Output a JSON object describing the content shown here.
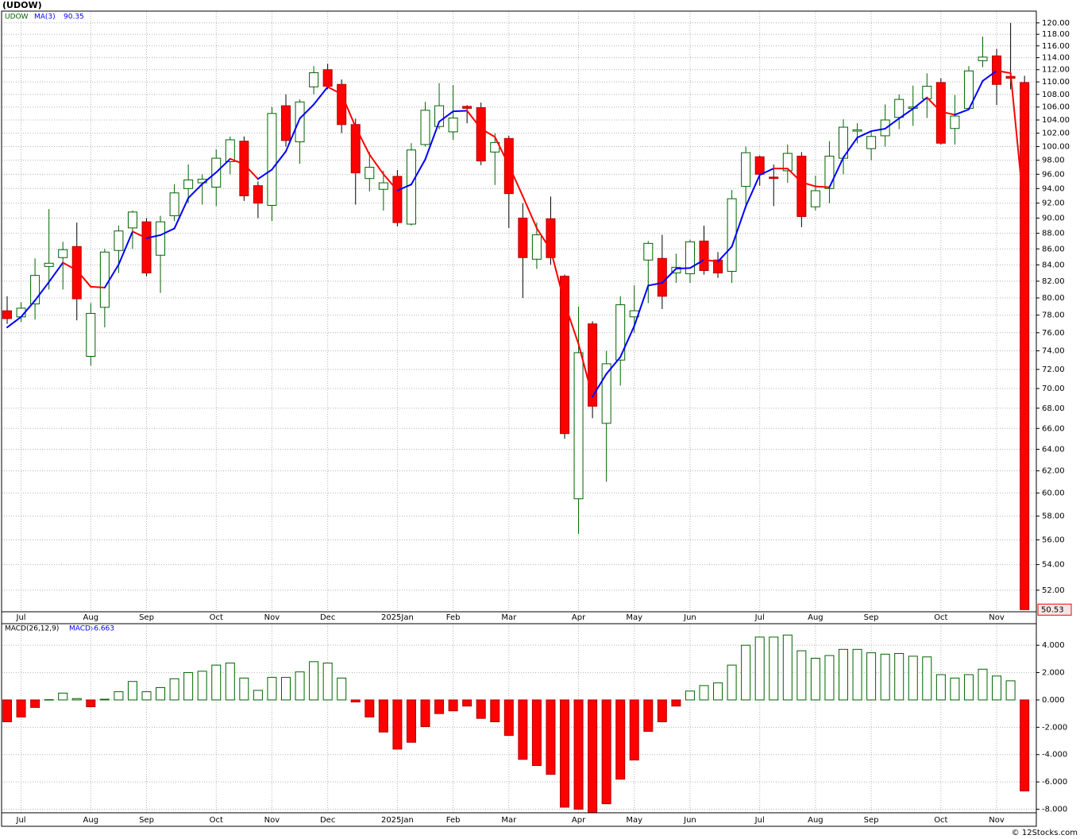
{
  "title": "(UDOW)",
  "credit": "© 12Stocks.com",
  "chart_data": [
    {
      "type": "candlestick",
      "name": "UDOW",
      "log_scale": true,
      "grid": true,
      "categories": [
        null,
        "Jul",
        null,
        null,
        null,
        null,
        "Aug",
        null,
        null,
        null,
        "Sep",
        null,
        null,
        null,
        null,
        "Oct",
        null,
        null,
        null,
        "Nov",
        null,
        null,
        null,
        "Dec",
        null,
        null,
        null,
        null,
        "2025Jan",
        null,
        null,
        null,
        "Feb",
        null,
        null,
        null,
        "Mar",
        null,
        null,
        null,
        null,
        "Apr",
        null,
        null,
        null,
        "May",
        null,
        null,
        null,
        "Jun",
        null,
        null,
        null,
        null,
        "Jul",
        null,
        null,
        null,
        "Aug",
        null,
        null,
        null,
        "Sep",
        null,
        null,
        null,
        null,
        "Oct",
        null,
        null,
        null,
        "Nov",
        null,
        null
      ],
      "open": [
        78.5,
        77.8,
        79.3,
        83.8,
        84.9,
        86.3,
        73.4,
        78.9,
        85.8,
        88.7,
        89.5,
        85.2,
        90.3,
        94.0,
        94.8,
        94.2,
        97.8,
        100.8,
        94.4,
        91.7,
        106.2,
        100.7,
        109.2,
        112.0,
        109.6,
        103.3,
        95.4,
        93.9,
        95.7,
        89.2,
        100.3,
        103.0,
        102.2,
        106.1,
        105.9,
        99.2,
        101.2,
        90.0,
        84.7,
        89.9,
        82.6,
        59.5,
        77.0,
        66.5,
        73.0,
        77.8,
        84.6,
        84.8,
        83.0,
        82.9,
        87.0,
        84.6,
        83.2,
        94.3,
        98.5,
        95.6,
        96.5,
        98.6,
        91.5,
        94.0,
        98.3,
        102.3,
        99.7,
        101.6,
        104.4,
        105.8,
        107.3,
        109.9,
        102.7,
        105.8,
        113.5,
        114.3,
        110.9,
        109.9
      ],
      "high": [
        80.2,
        79.5,
        84.8,
        91.2,
        86.9,
        89.4,
        79.4,
        86.0,
        89.0,
        91.0,
        90.0,
        90.3,
        94.6,
        97.4,
        96.0,
        99.6,
        101.5,
        101.5,
        95.0,
        106.0,
        108.0,
        107.2,
        112.6,
        113.0,
        110.4,
        104.2,
        99.2,
        96.5,
        96.6,
        100.5,
        106.8,
        109.8,
        109.5,
        106.3,
        106.7,
        102.0,
        101.6,
        92.0,
        89.4,
        92.9,
        82.8,
        79.0,
        77.3,
        74.0,
        80.2,
        81.5,
        87.0,
        87.8,
        85.4,
        87.2,
        89.0,
        85.6,
        93.8,
        100.0,
        98.7,
        97.4,
        100.3,
        99.2,
        95.8,
        100.8,
        104.1,
        103.5,
        102.3,
        106.4,
        108.0,
        109.4,
        111.4,
        110.6,
        107.9,
        112.6,
        117.6,
        115.5,
        120.0,
        111.0
      ],
      "low": [
        77.0,
        77.2,
        77.5,
        81.0,
        81.0,
        77.4,
        72.4,
        76.6,
        83.0,
        86.0,
        82.6,
        80.6,
        89.6,
        92.0,
        91.8,
        91.6,
        96.0,
        92.3,
        90.0,
        89.6,
        100.0,
        97.5,
        108.0,
        108.8,
        102.0,
        91.8,
        93.6,
        91.0,
        88.9,
        89.0,
        100.0,
        102.6,
        101.0,
        103.5,
        97.3,
        94.5,
        88.7,
        80.0,
        83.5,
        84.0,
        65.0,
        56.5,
        67.0,
        61.0,
        70.3,
        76.0,
        79.4,
        78.7,
        81.8,
        81.8,
        82.8,
        82.4,
        81.8,
        91.8,
        94.4,
        91.6,
        94.8,
        88.8,
        91.0,
        92.0,
        96.0,
        100.5,
        98.0,
        100.0,
        102.6,
        103.1,
        104.3,
        100.3,
        100.3,
        105.6,
        112.4,
        106.3,
        108.8,
        50.53
      ],
      "close": [
        77.6,
        78.8,
        82.7,
        84.2,
        85.9,
        79.9,
        78.2,
        85.6,
        88.3,
        90.8,
        83.0,
        89.5,
        93.4,
        95.2,
        95.3,
        98.3,
        101.0,
        93.0,
        92.0,
        105.0,
        100.9,
        106.8,
        111.5,
        109.3,
        103.3,
        96.2,
        97.0,
        94.8,
        89.4,
        99.5,
        105.5,
        106.2,
        104.3,
        105.8,
        97.9,
        100.6,
        93.3,
        84.9,
        87.8,
        84.9,
        65.5,
        73.8,
        68.2,
        72.6,
        79.2,
        78.5,
        86.7,
        80.2,
        83.7,
        86.9,
        83.3,
        83.0,
        92.6,
        99.1,
        96.0,
        95.4,
        99.0,
        90.2,
        93.7,
        98.6,
        102.9,
        102.5,
        101.5,
        104.0,
        107.2,
        106.0,
        109.3,
        100.5,
        104.6,
        111.8,
        114.1,
        109.6,
        110.6,
        50.53
      ],
      "up_color": "#006400",
      "down_color": "#ff0000",
      "ma": {
        "name": "MA(3)",
        "up_color": "#0000ff",
        "down_color": "#ff0000",
        "values": [
          76.6,
          77.8,
          79.7,
          81.9,
          84.27,
          83.33,
          81.33,
          81.23,
          84.03,
          88.23,
          87.37,
          87.77,
          88.63,
          92.7,
          94.63,
          96.27,
          98.2,
          97.43,
          95.33,
          96.67,
          99.3,
          104.23,
          106.4,
          109.2,
          108.03,
          102.93,
          98.83,
          96,
          93.73,
          94.57,
          98.13,
          103.73,
          105.33,
          105.43,
          102.67,
          101.43,
          97.27,
          92.93,
          88.67,
          85.87,
          79.4,
          74.73,
          69.17,
          71.53,
          73.33,
          76.77,
          81.47,
          81.8,
          83.53,
          83.6,
          84.63,
          84.4,
          86.3,
          91.57,
          95.9,
          96.83,
          96.8,
          94.87,
          94.3,
          94.17,
          98.4,
          101.33,
          102.3,
          102.67,
          104.23,
          105.73,
          107.5,
          105.27,
          104.8,
          105.63,
          110.17,
          111.83,
          111.43,
          90.35
        ]
      },
      "ylim": [
        50.37,
        122.1
      ],
      "yticks": [
        {
          "value": 52,
          "label": "52.00"
        },
        {
          "value": 54,
          "label": "54.00"
        },
        {
          "value": 56,
          "label": "56.00"
        },
        {
          "value": 58,
          "label": "58.00"
        },
        {
          "value": 60,
          "label": "60.00"
        },
        {
          "value": 62,
          "label": "62.00"
        },
        {
          "value": 64,
          "label": "64.00"
        },
        {
          "value": 66,
          "label": "66.00"
        },
        {
          "value": 68,
          "label": "68.00"
        },
        {
          "value": 70,
          "label": "70.00"
        },
        {
          "value": 72,
          "label": "72.00"
        },
        {
          "value": 74,
          "label": "74.00"
        },
        {
          "value": 76,
          "label": "76.00"
        },
        {
          "value": 78,
          "label": "78.00"
        },
        {
          "value": 80,
          "label": "80.00"
        },
        {
          "value": 82,
          "label": "82.00"
        },
        {
          "value": 84,
          "label": "84.00"
        },
        {
          "value": 86,
          "label": "86.00"
        },
        {
          "value": 88,
          "label": "88.00"
        },
        {
          "value": 90,
          "label": "90.00"
        },
        {
          "value": 92,
          "label": "92.00"
        },
        {
          "value": 94,
          "label": "94.00"
        },
        {
          "value": 96,
          "label": "96.00"
        },
        {
          "value": 98,
          "label": "98.00"
        },
        {
          "value": 100,
          "label": "100.00"
        },
        {
          "value": 102,
          "label": "102.00"
        },
        {
          "value": 104,
          "label": "104.00"
        },
        {
          "value": 106,
          "label": "106.00"
        },
        {
          "value": 108,
          "label": "108.00"
        },
        {
          "value": 110,
          "label": "110.00"
        },
        {
          "value": 112,
          "label": "112.00"
        },
        {
          "value": 114,
          "label": "114.00"
        },
        {
          "value": 116,
          "label": "116.00"
        },
        {
          "value": 118,
          "label": "118.00"
        },
        {
          "value": 120,
          "label": "120.00"
        }
      ]
    },
    {
      "type": "macd",
      "name": "MACD(26,12,9)",
      "value_name": "MACD:",
      "grid": true,
      "categories": [
        null,
        "Jul",
        null,
        null,
        null,
        null,
        "Aug",
        null,
        null,
        null,
        "Sep",
        null,
        null,
        null,
        null,
        "Oct",
        null,
        null,
        null,
        "Nov",
        null,
        null,
        null,
        "Dec",
        null,
        null,
        null,
        null,
        "2025Jan",
        null,
        null,
        null,
        "Feb",
        null,
        null,
        null,
        "Mar",
        null,
        null,
        null,
        null,
        "Apr",
        null,
        null,
        null,
        "May",
        null,
        null,
        null,
        "Jun",
        null,
        null,
        null,
        null,
        "Jul",
        null,
        null,
        null,
        "Aug",
        null,
        null,
        null,
        "Sep",
        null,
        null,
        null,
        null,
        "Oct",
        null,
        null,
        null,
        "Nov",
        null,
        null
      ],
      "values": [
        -1.6,
        -1.25,
        -0.55,
        0.02,
        0.5,
        0.1,
        -0.5,
        0.05,
        0.6,
        1.35,
        0.6,
        0.9,
        1.55,
        2.0,
        2.1,
        2.55,
        2.7,
        1.6,
        0.7,
        1.65,
        1.65,
        2.05,
        2.8,
        2.7,
        1.6,
        -0.15,
        -1.25,
        -2.35,
        -3.6,
        -3.1,
        -1.95,
        -1.0,
        -0.8,
        -0.45,
        -1.35,
        -1.6,
        -2.6,
        -4.35,
        -4.8,
        -5.45,
        -7.85,
        -8.0,
        -8.45,
        -7.6,
        -5.8,
        -4.4,
        -2.3,
        -1.6,
        -0.45,
        0.65,
        1.05,
        1.25,
        2.55,
        4.0,
        4.6,
        4.6,
        4.75,
        3.6,
        3.05,
        3.25,
        3.7,
        3.7,
        3.45,
        3.35,
        3.4,
        3.2,
        3.15,
        1.85,
        1.6,
        1.85,
        2.25,
        1.75,
        1.4,
        -6.663
      ],
      "up_color": "#006400",
      "down_color": "#ff0000",
      "value_color": "#0000ff",
      "ylim": [
        -8.26,
        5.58
      ],
      "yticks": [
        {
          "value": -8,
          "label": "-8.000"
        },
        {
          "value": -6,
          "label": "-6.000"
        },
        {
          "value": -4,
          "label": "-4.000"
        },
        {
          "value": -2,
          "label": "-2.000"
        },
        {
          "value": 0,
          "label": "0.000"
        },
        {
          "value": 2,
          "label": "2.000"
        },
        {
          "value": 4,
          "label": "4.000"
        }
      ]
    }
  ]
}
